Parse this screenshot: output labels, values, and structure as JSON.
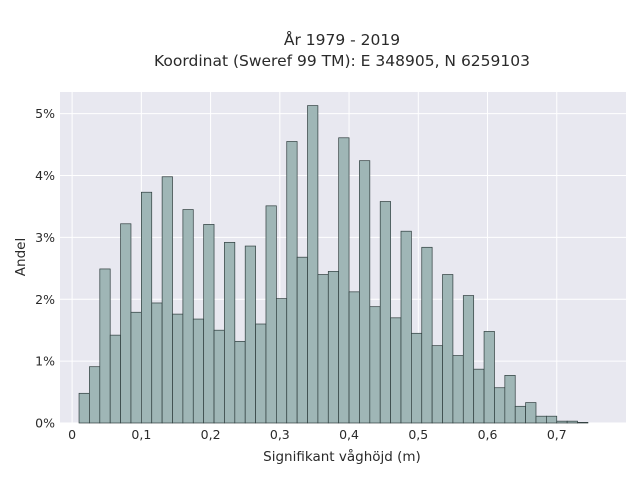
{
  "chart_data": {
    "type": "bar",
    "title": [
      "År 1979 - 2019",
      "Koordinat (Sweref 99 TM): E 348905, N 6259103"
    ],
    "xlabel": "Signifikant våghöjd (m)",
    "ylabel": "Andel",
    "xlim": [
      -0.0175,
      0.8
    ],
    "ylim": [
      0,
      5.35
    ],
    "x_ticks": [
      0,
      0.1,
      0.2,
      0.3,
      0.4,
      0.5,
      0.6,
      0.7
    ],
    "x_tick_labels": [
      "0",
      "0,1",
      "0,2",
      "0,3",
      "0,4",
      "0,5",
      "0,6",
      "0,7"
    ],
    "y_ticks": [
      0,
      1,
      2,
      3,
      4,
      5
    ],
    "y_tick_labels": [
      "0%",
      "1%",
      "2%",
      "3%",
      "4%",
      "5%"
    ],
    "grid": true,
    "bin_width": 0.015,
    "bin_starts": [
      0.01,
      0.025,
      0.04,
      0.055,
      0.07,
      0.085,
      0.1,
      0.115,
      0.13,
      0.145,
      0.16,
      0.175,
      0.19,
      0.205,
      0.22,
      0.235,
      0.25,
      0.265,
      0.28,
      0.295,
      0.31,
      0.325,
      0.34,
      0.355,
      0.37,
      0.385,
      0.4,
      0.415,
      0.43,
      0.445,
      0.46,
      0.475,
      0.49,
      0.505,
      0.52,
      0.535,
      0.55,
      0.565,
      0.58,
      0.595,
      0.61,
      0.625,
      0.64,
      0.655,
      0.67,
      0.685,
      0.7,
      0.715,
      0.73
    ],
    "values": [
      0.48,
      0.91,
      2.49,
      1.42,
      3.22,
      1.79,
      3.73,
      1.94,
      3.98,
      1.76,
      3.45,
      1.68,
      3.21,
      1.5,
      2.92,
      1.32,
      2.86,
      1.6,
      3.51,
      2.01,
      4.55,
      2.68,
      5.13,
      2.4,
      2.45,
      4.61,
      2.12,
      4.24,
      1.88,
      3.58,
      1.7,
      3.1,
      1.45,
      2.84,
      1.25,
      2.4,
      1.09,
      2.06,
      0.87,
      1.48,
      0.57,
      0.77,
      0.27,
      0.33,
      0.11,
      0.11,
      0.03,
      0.03,
      0.01
    ],
    "colors": {
      "bar_fill": "#9fb6b6",
      "bar_edge": "#2e3d3d",
      "plot_background": "#e8e8f0",
      "grid": "#ffffff"
    }
  }
}
